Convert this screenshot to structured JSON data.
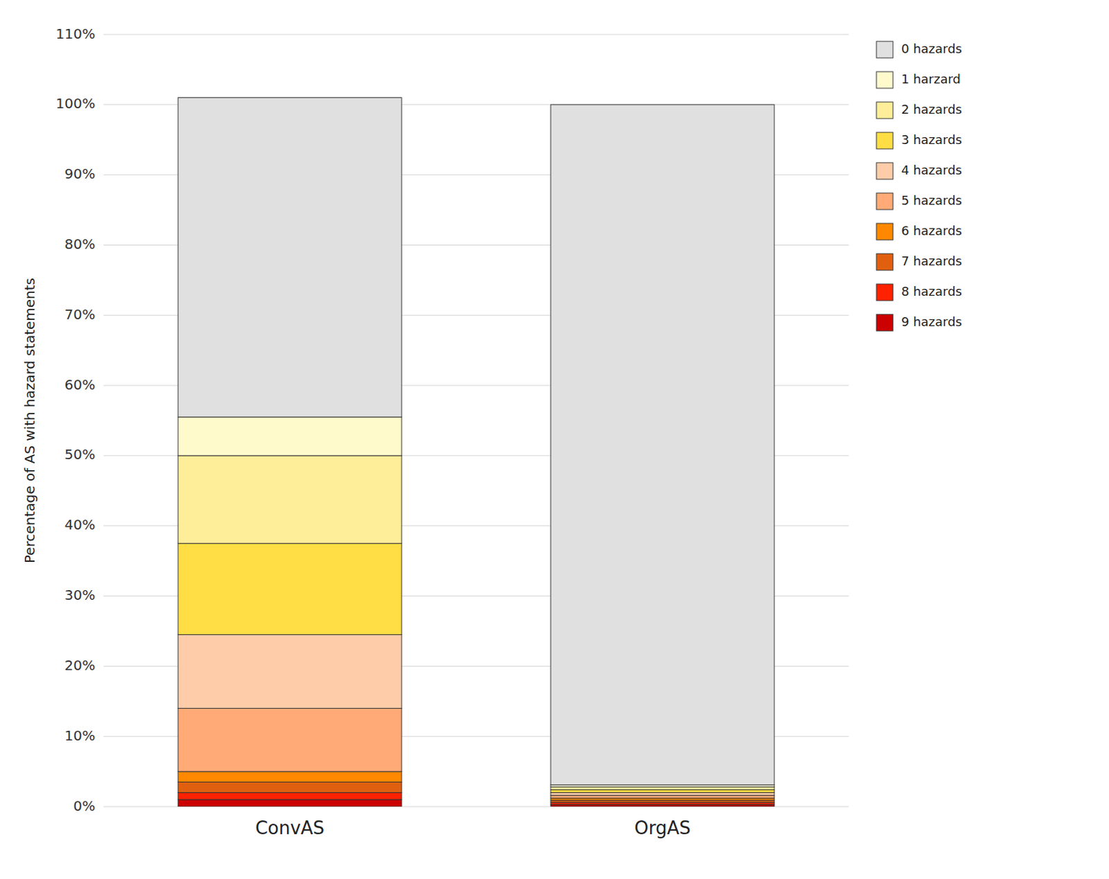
{
  "chart_data": {
    "type": "bar",
    "stacked": true,
    "y_label": "Percentage of AS with hazard statements",
    "categories": [
      "ConvAS",
      "OrgAS"
    ],
    "series": [
      {
        "name": "9 hazards",
        "color": "#cc0000",
        "values": [
          1.0,
          0.3
        ]
      },
      {
        "name": "8 hazards",
        "color": "#ff2200",
        "values": [
          1.0,
          0.3
        ]
      },
      {
        "name": "7 hazards",
        "color": "#e06010",
        "values": [
          1.5,
          0.3
        ]
      },
      {
        "name": "6 hazards",
        "color": "#ff8800",
        "values": [
          1.5,
          0.3
        ]
      },
      {
        "name": "5 hazards",
        "color": "#ffaa77",
        "values": [
          9.0,
          0.4
        ]
      },
      {
        "name": "4 hazards",
        "color": "#ffccaa",
        "values": [
          10.5,
          0.4
        ]
      },
      {
        "name": "3 hazards",
        "color": "#ffdd44",
        "values": [
          13.0,
          0.4
        ]
      },
      {
        "name": "2 hazards",
        "color": "#ffee99",
        "values": [
          12.5,
          0.4
        ]
      },
      {
        "name": "1 harzard",
        "color": "#fffacc",
        "values": [
          5.5,
          0.3
        ]
      },
      {
        "name": "0 hazards",
        "color": "#e0e0e0",
        "values": [
          45.5,
          96.9
        ]
      }
    ],
    "ylim": [
      0,
      110
    ],
    "yticks": [
      {
        "value": 0,
        "label": "0%"
      },
      {
        "value": 10,
        "label": "10%"
      },
      {
        "value": 20,
        "label": "20%"
      },
      {
        "value": 30,
        "label": "30%"
      },
      {
        "value": 40,
        "label": "40%"
      },
      {
        "value": 50,
        "label": "50%"
      },
      {
        "value": 60,
        "label": "60%"
      },
      {
        "value": 70,
        "label": "70%"
      },
      {
        "value": 80,
        "label": "80%"
      },
      {
        "value": 90,
        "label": "90%"
      },
      {
        "value": 100,
        "label": "100%"
      },
      {
        "value": 110,
        "label": "110%"
      }
    ],
    "grid": true,
    "legend": "right"
  }
}
